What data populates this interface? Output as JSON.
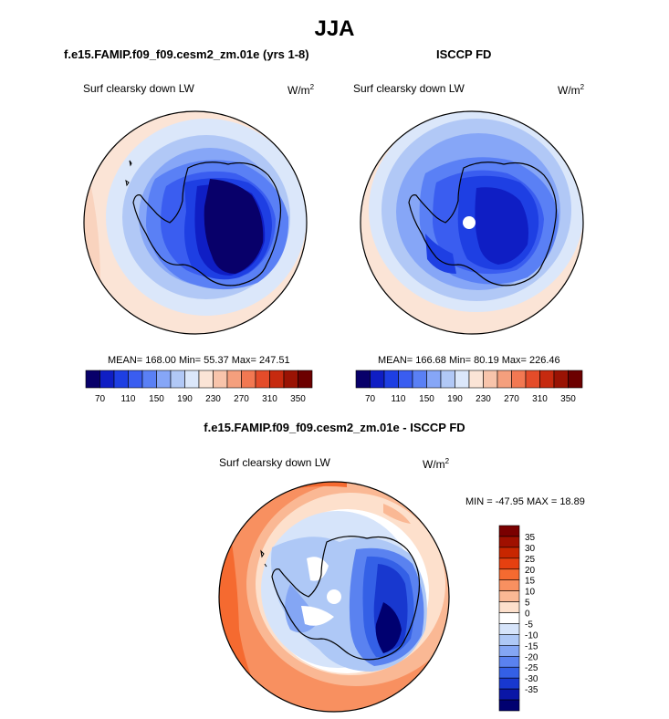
{
  "title": "JJA",
  "panels": {
    "left": {
      "title": "f.e15.FAMIP.f09_f09.cesm2_zm.01e (yrs 1-8)",
      "variable": "Surf clearsky down LW",
      "units": "W/m",
      "units_sup": "2",
      "stats": "MEAN= 168.00  Min=  55.37  Max= 247.51"
    },
    "right": {
      "title": "ISCCP FD",
      "variable": "Surf clearsky down LW",
      "units": "W/m",
      "units_sup": "2",
      "stats": "MEAN= 166.68  Min=  80.19  Max= 226.46"
    },
    "diff": {
      "title": "f.e15.FAMIP.f09_f09.cesm2_zm.01e - ISCCP FD",
      "variable": "Surf clearsky down LW",
      "units": "W/m",
      "units_sup": "2",
      "stats": "MIN = -47.95 MAX =  18.89"
    }
  },
  "chart_data": [
    {
      "type": "heatmap",
      "title": "f.e15.FAMIP.f09_f09.cesm2_zm.01e (yrs 1-8)",
      "projection": "south polar stereographic",
      "colorbar": {
        "orientation": "horizontal",
        "levels": [
          70,
          90,
          110,
          130,
          150,
          170,
          190,
          210,
          230,
          250,
          270,
          290,
          310,
          330,
          350
        ],
        "tick_labels": [
          "70",
          "110",
          "150",
          "190",
          "230",
          "270",
          "310",
          "350"
        ],
        "colors": [
          "#08006a",
          "#0f1ec4",
          "#1e3fe3",
          "#3a5df0",
          "#5a80f5",
          "#86a6f7",
          "#b1c8f6",
          "#dbe7fa",
          "#fbe4d6",
          "#f8c4ab",
          "#f59f7d",
          "#f27852",
          "#e44c2a",
          "#c62a0f",
          "#9a1304",
          "#6c0000"
        ]
      },
      "mean": 168.0,
      "min": 55.37,
      "max": 247.51
    },
    {
      "type": "heatmap",
      "title": "ISCCP FD",
      "projection": "south polar stereographic",
      "colorbar": {
        "orientation": "horizontal",
        "levels": [
          70,
          90,
          110,
          130,
          150,
          170,
          190,
          210,
          230,
          250,
          270,
          290,
          310,
          330,
          350
        ],
        "tick_labels": [
          "70",
          "110",
          "150",
          "190",
          "230",
          "270",
          "310",
          "350"
        ],
        "colors": [
          "#08006a",
          "#0f1ec4",
          "#1e3fe3",
          "#3a5df0",
          "#5a80f5",
          "#86a6f7",
          "#b1c8f6",
          "#dbe7fa",
          "#fbe4d6",
          "#f8c4ab",
          "#f59f7d",
          "#f27852",
          "#e44c2a",
          "#c62a0f",
          "#9a1304",
          "#6c0000"
        ]
      },
      "mean": 166.68,
      "min": 80.19,
      "max": 226.46
    },
    {
      "type": "heatmap",
      "title": "f.e15.FAMIP.f09_f09.cesm2_zm.01e - ISCCP FD",
      "projection": "south polar stereographic",
      "colorbar": {
        "orientation": "vertical",
        "tick_labels": [
          "35",
          "30",
          "25",
          "20",
          "15",
          "10",
          "5",
          "0",
          "-5",
          "-10",
          "-15",
          "-20",
          "-25",
          "-30",
          "-35"
        ],
        "colors": [
          "#7a0000",
          "#a01000",
          "#c82600",
          "#e64010",
          "#f56a30",
          "#f89060",
          "#fab894",
          "#fde0cc",
          "#ffffff",
          "#d6e4fa",
          "#aec8f6",
          "#84a6f4",
          "#5a82f0",
          "#3460e6",
          "#1838cf",
          "#0a16a6",
          "#000070"
        ]
      },
      "min": -47.95,
      "max": 18.89
    }
  ]
}
